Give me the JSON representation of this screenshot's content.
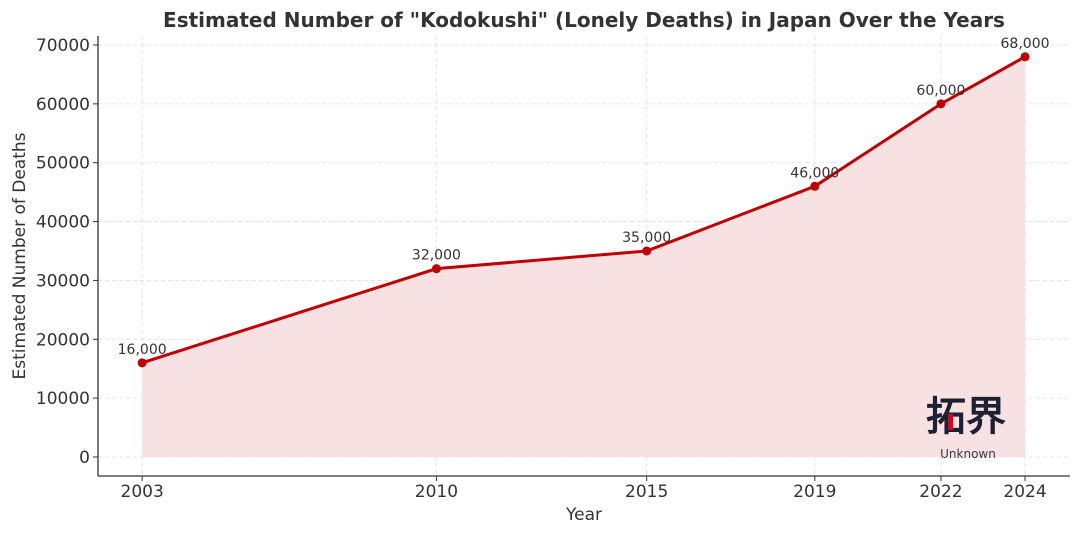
{
  "chart_data": {
    "type": "line",
    "title": "Estimated Number of \"Kodokushi\" (Lonely Deaths) in Japan Over the Years",
    "xlabel": "Year",
    "ylabel": "Estimated Number of Deaths",
    "x": [
      2003,
      2010,
      2015,
      2019,
      2022,
      2024
    ],
    "values": [
      16000,
      32000,
      35000,
      46000,
      60000,
      68000
    ],
    "data_labels": [
      "16,000",
      "32,000",
      "35,000",
      "46,000",
      "60,000",
      "68,000"
    ],
    "x_ticks": [
      "2003",
      "2010",
      "2015",
      "2019",
      "2022",
      "2024"
    ],
    "y_ticks": [
      0,
      10000,
      20000,
      30000,
      40000,
      50000,
      60000,
      70000
    ],
    "y_tick_labels": [
      "0",
      "10000",
      "20000",
      "30000",
      "40000",
      "50000",
      "60000",
      "70000"
    ],
    "xlim": [
      2001.95,
      2025.07
    ],
    "ylim": [
      -3230,
      71530
    ],
    "grid": true,
    "fill_under_line": true,
    "colors": {
      "line": "#c00000",
      "fill": "#f7e1e2",
      "grid": "#dddddd",
      "text": "#333333"
    }
  },
  "watermark": {
    "logo_text": "拓界",
    "subtitle": "Unknown"
  }
}
